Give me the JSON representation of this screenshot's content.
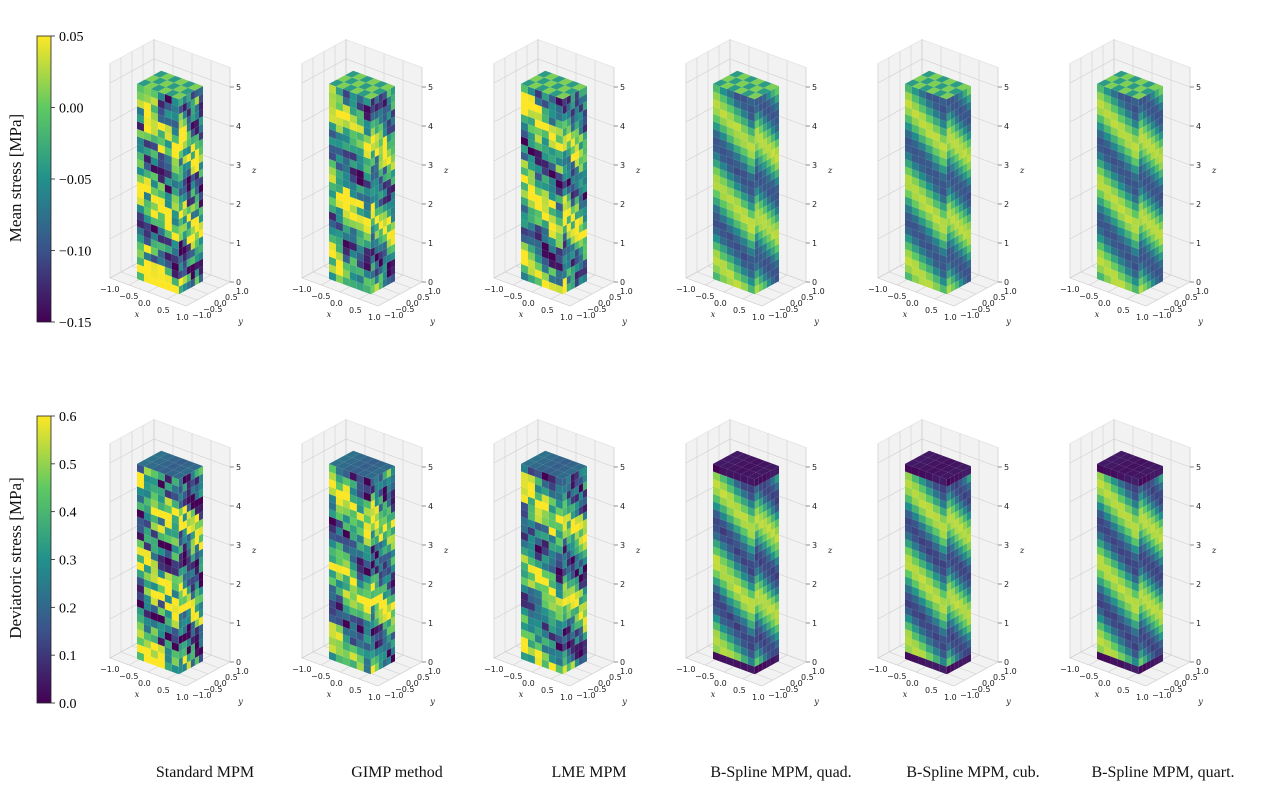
{
  "figure": {
    "row_labels": [
      "Mean stress [MPa]",
      "Deviatoric stress [MPa]"
    ],
    "column_titles": [
      "Standard MPM",
      "GIMP method",
      "LME MPM",
      "B-Spline MPM, quad.",
      "B-Spline MPM, cub.",
      "B-Spline MPM, quart."
    ],
    "colormap": [
      "#440154",
      "#3b528b",
      "#21918c",
      "#5ec962",
      "#fde725"
    ]
  },
  "chart_data": [
    {
      "type": "heatmap",
      "title": "",
      "colorbar_label": "Mean stress [MPa]",
      "colorbar_range": [
        -0.15,
        0.05
      ],
      "colorbar_ticks": [
        "0.05",
        "0.00",
        "−0.05",
        "−0.10",
        "−0.15"
      ],
      "panels": [
        "Standard MPM",
        "GIMP method",
        "LME MPM",
        "B-Spline MPM, quad.",
        "B-Spline MPM, cub.",
        "B-Spline MPM, quart."
      ],
      "axes": {
        "xlabel": "x",
        "ylabel": "y",
        "zlabel": "z",
        "x_ticks": [
          "−1.0",
          "−0.5",
          "0.0",
          "0.5",
          "1.0"
        ],
        "y_ticks": [
          "1.0",
          "0.5",
          "0.0",
          "−0.5",
          "−1.0"
        ],
        "z_ticks": [
          "0",
          "1",
          "2",
          "3",
          "4",
          "5"
        ],
        "xlim": [
          -1.0,
          1.0
        ],
        "ylim": [
          -1.0,
          1.0
        ],
        "zlim": [
          0,
          5
        ]
      }
    },
    {
      "type": "heatmap",
      "title": "",
      "colorbar_label": "Deviatoric stress [MPa]",
      "colorbar_range": [
        0.0,
        0.6
      ],
      "colorbar_ticks": [
        "0.6",
        "0.5",
        "0.4",
        "0.3",
        "0.2",
        "0.1",
        "0.0"
      ],
      "panels": [
        "Standard MPM",
        "GIMP method",
        "LME MPM",
        "B-Spline MPM, quad.",
        "B-Spline MPM, cub.",
        "B-Spline MPM, quart."
      ],
      "axes": {
        "xlabel": "x",
        "ylabel": "y",
        "zlabel": "z",
        "x_ticks": [
          "−1.0",
          "−0.5",
          "0.0",
          "0.5",
          "1.0"
        ],
        "y_ticks": [
          "1.0",
          "0.5",
          "0.0",
          "−0.5",
          "−1.0"
        ],
        "z_ticks": [
          "0",
          "1",
          "2",
          "3",
          "4",
          "5"
        ],
        "xlim": [
          -1.0,
          1.0
        ],
        "ylim": [
          -1.0,
          1.0
        ],
        "zlim": [
          0,
          5
        ]
      }
    }
  ]
}
